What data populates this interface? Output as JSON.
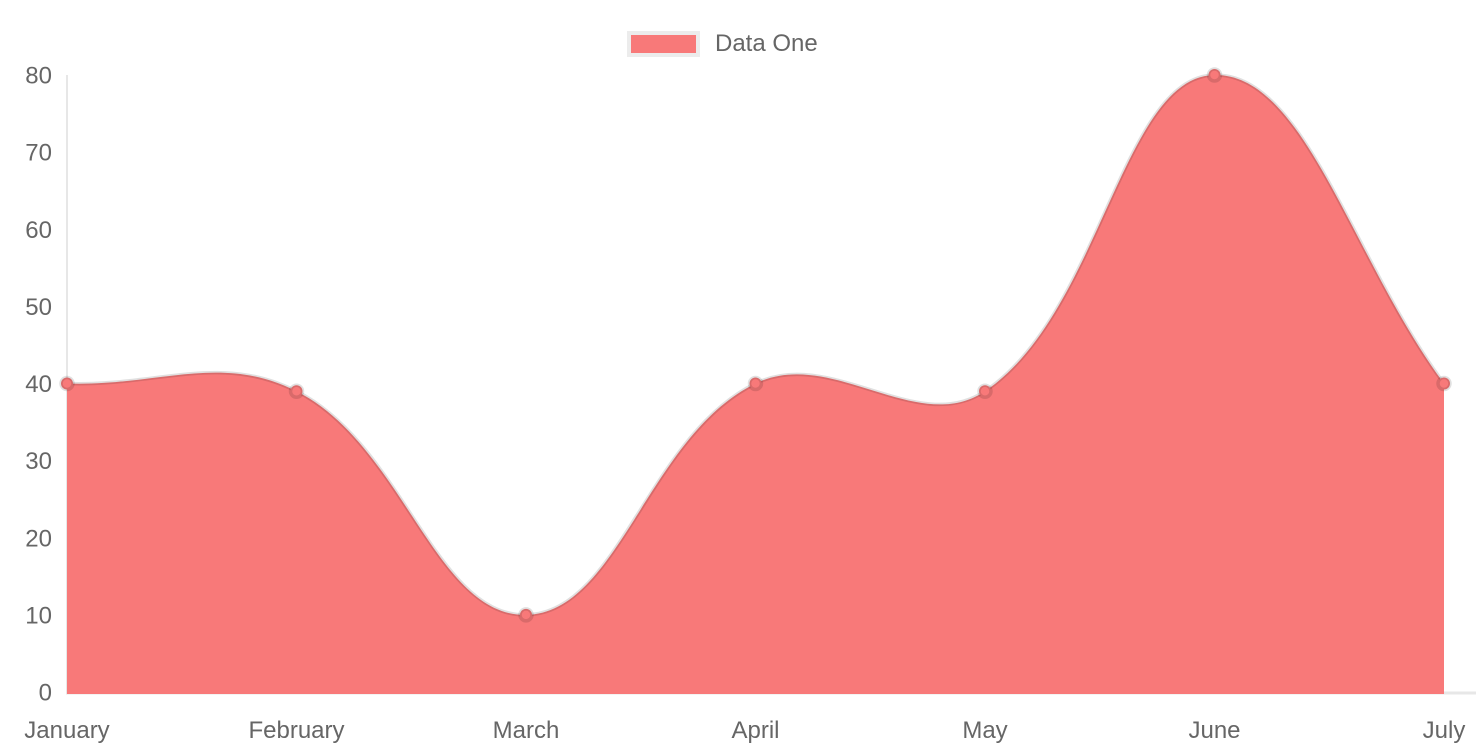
{
  "chart_data": {
    "type": "area",
    "title": "",
    "categories": [
      "January",
      "February",
      "March",
      "April",
      "May",
      "June",
      "July"
    ],
    "series": [
      {
        "name": "Data One",
        "values": [
          40,
          39,
          10,
          40,
          39,
          80,
          40
        ]
      }
    ],
    "xlabel": "",
    "ylabel": "",
    "ylim": [
      0,
      80
    ],
    "yticks": [
      0,
      10,
      20,
      30,
      40,
      50,
      60,
      70,
      80
    ],
    "grid": false,
    "legend_position": "top",
    "line_tension": 0.4,
    "colors": {
      "fill": "#f87979",
      "line_border": "rgba(0,0,0,0.12)",
      "point_fill": "#f87979",
      "point_border": "rgba(0,0,0,0.12)",
      "axis_line": "#e7e7e7",
      "label_text": "#666666",
      "legend_box_border": "#ececec"
    }
  },
  "legend": {
    "label": "Data One"
  }
}
